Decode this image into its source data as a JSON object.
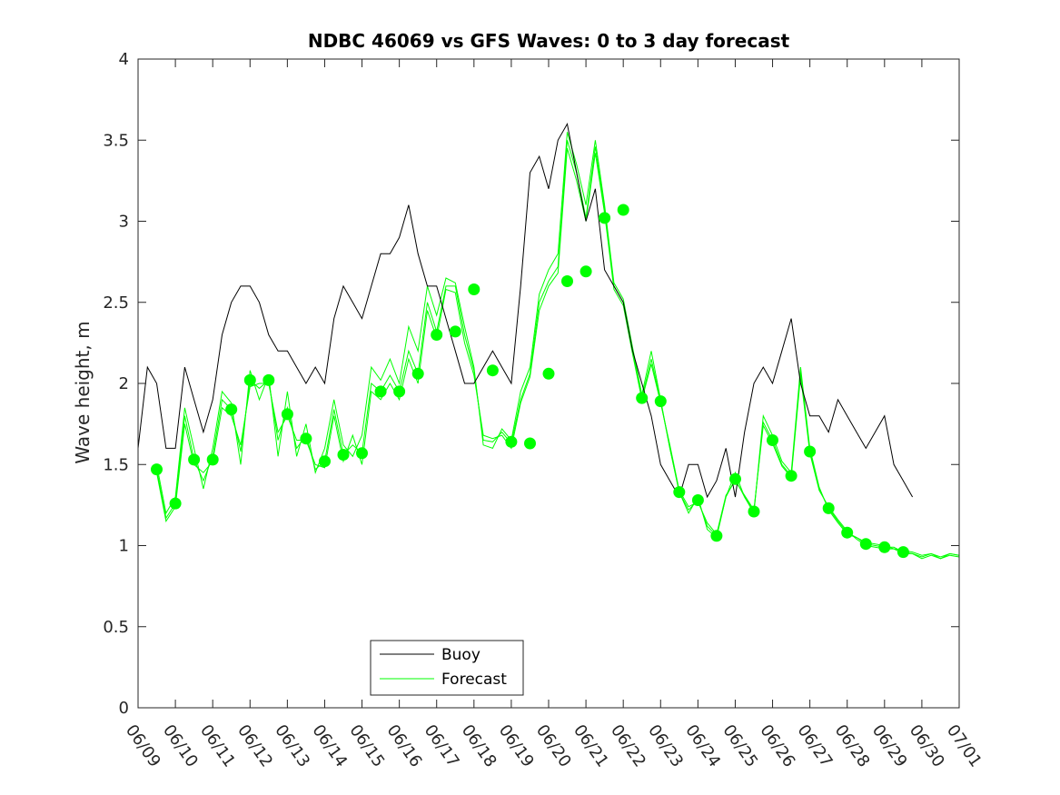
{
  "chart_data": {
    "type": "line",
    "title": "NDBC 46069 vs GFS Waves: 0 to 3 day forecast",
    "xlabel": "",
    "ylabel": "Wave height, m",
    "x_tick_labels": [
      "06/09",
      "06/10",
      "06/11",
      "06/12",
      "06/13",
      "06/14",
      "06/15",
      "06/16",
      "06/17",
      "06/18",
      "06/19",
      "06/20",
      "06/21",
      "06/22",
      "06/23",
      "06/24",
      "06/25",
      "06/26",
      "06/27",
      "06/28",
      "06/29",
      "06/30",
      "07/01"
    ],
    "xlim_days": [
      0,
      22
    ],
    "ylim": [
      0,
      4
    ],
    "y_ticks": [
      0,
      0.5,
      1,
      1.5,
      2,
      2.5,
      3,
      3.5,
      4
    ],
    "grid": false,
    "legend": {
      "location": "bottom-center",
      "entries": [
        "Buoy",
        "Forecast"
      ]
    },
    "colors": {
      "buoy": "#000000",
      "forecast": "#00ff00",
      "frame": "#262626"
    },
    "series": [
      {
        "name": "Buoy",
        "x_days": [
          0,
          0.25,
          0.5,
          0.75,
          1,
          1.25,
          1.5,
          1.75,
          2,
          2.25,
          2.5,
          2.75,
          3,
          3.25,
          3.5,
          3.75,
          4,
          4.25,
          4.5,
          4.75,
          5,
          5.25,
          5.5,
          5.75,
          6,
          6.25,
          6.5,
          6.75,
          7,
          7.25,
          7.5,
          7.75,
          8,
          8.25,
          8.5,
          8.75,
          9,
          9.25,
          9.5,
          9.75,
          10,
          10.25,
          10.5,
          10.75,
          11,
          11.25,
          11.5,
          11.75,
          12,
          12.25,
          12.5,
          12.75,
          13,
          13.25,
          13.5,
          13.75,
          14,
          14.25,
          14.5,
          14.75,
          15,
          15.25,
          15.5,
          15.75,
          16,
          16.25,
          16.5,
          16.75,
          17,
          17.25,
          17.5,
          17.75,
          18,
          18.25,
          18.5,
          18.75,
          19,
          19.25,
          19.5,
          19.75,
          20,
          20.25,
          20.5,
          20.75,
          21,
          21.25,
          21.5,
          21.75,
          22
        ],
        "values": [
          1.6,
          2.1,
          2.0,
          1.6,
          1.6,
          2.1,
          1.9,
          1.7,
          1.9,
          2.3,
          2.5,
          2.6,
          2.6,
          2.5,
          2.3,
          2.2,
          2.2,
          2.1,
          2.0,
          2.1,
          2.0,
          2.4,
          2.6,
          2.5,
          2.4,
          2.6,
          2.8,
          2.8,
          2.9,
          3.1,
          2.8,
          2.6,
          2.6,
          2.4,
          2.2,
          2.0,
          2.0,
          2.1,
          2.2,
          2.1,
          2.0,
          2.6,
          3.3,
          3.4,
          3.2,
          3.5,
          3.6,
          3.3,
          3.0,
          3.2,
          2.7,
          2.6,
          2.5,
          2.2,
          2.0,
          1.8,
          1.5,
          1.4,
          1.3,
          1.5,
          1.5,
          1.3,
          1.4,
          1.6,
          1.3,
          1.7,
          2.0,
          2.1,
          2.0,
          2.2,
          2.4,
          2.0,
          1.8,
          1.8,
          1.7,
          1.9,
          1.8,
          1.7,
          1.6,
          1.7,
          1.8,
          1.5,
          1.4,
          1.3,
          null,
          null,
          null,
          null,
          null
        ]
      },
      {
        "name": "Forecast",
        "runs": [
          {
            "x_days": [
              0.5,
              0.75,
              1,
              1.25,
              1.5,
              1.75,
              2,
              2.25,
              2.5,
              2.75,
              3,
              3.25,
              3.5,
              3.75,
              4,
              4.25,
              4.5,
              4.75,
              5,
              5.25,
              5.5,
              5.75,
              6,
              6.25,
              6.5,
              6.75,
              7,
              7.25,
              7.5,
              7.75,
              8,
              8.25,
              8.5,
              8.75,
              9,
              9.25,
              9.5,
              9.75,
              10,
              10.25,
              10.5,
              10.75,
              11,
              11.25,
              11.5,
              11.75,
              12,
              12.25,
              12.5,
              12.75,
              13,
              13.25,
              13.5,
              13.75,
              14,
              14.25,
              14.5,
              14.75,
              15,
              15.25,
              15.5,
              15.75,
              16,
              16.25,
              16.5,
              16.75,
              17,
              17.25,
              17.5,
              17.75,
              18,
              18.25,
              18.5,
              18.75,
              19,
              19.25,
              19.5,
              19.75,
              20,
              20.25,
              20.5,
              20.75,
              21,
              21.25,
              21.5,
              21.75,
              22
            ],
            "values": [
              1.47,
              1.17,
              1.26,
              1.8,
              1.53,
              1.4,
              1.55,
              1.9,
              1.84,
              1.58,
              2.02,
              1.97,
              2.02,
              1.65,
              1.85,
              1.6,
              1.68,
              1.47,
              1.52,
              1.84,
              1.56,
              1.62,
              1.57,
              2.0,
              1.95,
              2.05,
              1.95,
              2.2,
              2.06,
              2.5,
              2.32,
              2.6,
              2.6,
              2.3,
              2.08,
              1.65,
              1.64,
              1.7,
              1.63,
              1.9,
              2.06,
              2.5,
              2.63,
              2.72,
              3.5,
              3.3,
              3.02,
              3.46,
              3.07,
              2.6,
              2.5,
              2.2,
              1.91,
              2.15,
              1.89,
              1.6,
              1.33,
              1.22,
              1.28,
              1.12,
              1.06,
              1.3,
              1.41,
              1.3,
              1.21,
              1.76,
              1.65,
              1.5,
              1.43,
              2.08,
              1.58,
              1.35,
              1.23,
              1.15,
              1.08,
              1.05,
              1.01,
              1.0,
              0.99,
              0.99,
              0.96,
              0.95,
              0.93,
              0.95,
              0.92,
              0.95,
              0.94
            ]
          },
          {
            "x_days": [
              0.5,
              0.75,
              1,
              1.25,
              1.5,
              1.75,
              2,
              2.25,
              2.5,
              2.75,
              3,
              3.25,
              3.5,
              3.75,
              4,
              4.25,
              4.5,
              4.75,
              5,
              5.25,
              5.5,
              5.75,
              6,
              6.25,
              6.5,
              6.75,
              7,
              7.25,
              7.5,
              7.75,
              8,
              8.25,
              8.5,
              8.75,
              9,
              9.25,
              9.5,
              9.75,
              10,
              10.25,
              10.5,
              10.75,
              11,
              11.25,
              11.5,
              11.75,
              12,
              12.25,
              12.5,
              12.75,
              13,
              13.25,
              13.5,
              13.75,
              14,
              14.25,
              14.5,
              14.75,
              15,
              15.25,
              15.5,
              15.75,
              16,
              16.25,
              16.5,
              16.75,
              17,
              17.25,
              17.5,
              17.75,
              18,
              18.25,
              18.5,
              18.75,
              19,
              19.25,
              19.5,
              19.75,
              20,
              20.25,
              20.5,
              20.75,
              21,
              21.25,
              21.5,
              21.75,
              22
            ],
            "values": [
              1.5,
              1.2,
              1.3,
              1.85,
              1.6,
              1.35,
              1.6,
              1.95,
              1.88,
              1.5,
              2.08,
              1.9,
              2.05,
              1.55,
              1.95,
              1.55,
              1.75,
              1.45,
              1.6,
              1.9,
              1.62,
              1.55,
              1.68,
              2.1,
              2.02,
              2.15,
              2.0,
              2.35,
              2.2,
              2.6,
              2.42,
              2.65,
              2.62,
              2.35,
              2.1,
              1.62,
              1.6,
              1.72,
              1.65,
              1.95,
              2.1,
              2.55,
              2.7,
              2.8,
              3.55,
              3.35,
              3.1,
              3.5,
              3.1,
              2.62,
              2.52,
              2.22,
              1.93,
              2.2,
              1.9,
              1.6,
              1.33,
              1.2,
              1.3,
              1.1,
              1.05,
              1.3,
              1.45,
              1.3,
              1.2,
              1.8,
              1.68,
              1.52,
              1.45,
              2.1,
              1.6,
              1.36,
              1.22,
              1.14,
              1.07,
              1.05,
              1.02,
              1.01,
              1.0,
              0.98,
              0.97,
              0.96,
              0.94,
              0.95,
              0.93,
              0.95,
              0.94
            ]
          },
          {
            "x_days": [
              0.5,
              0.75,
              1,
              1.25,
              1.5,
              1.75,
              2,
              2.25,
              2.5,
              2.75,
              3,
              3.25,
              3.5,
              3.75,
              4,
              4.25,
              4.5,
              4.75,
              5,
              5.25,
              5.5,
              5.75,
              6,
              6.25,
              6.5,
              6.75,
              7,
              7.25,
              7.5,
              7.75,
              8,
              8.25,
              8.5,
              8.75,
              9,
              9.25,
              9.5,
              9.75,
              10,
              10.25,
              10.5,
              10.75,
              11,
              11.25,
              11.5,
              11.75,
              12,
              12.25,
              12.5,
              12.75,
              13,
              13.25,
              13.5,
              13.75,
              14,
              14.25,
              14.5,
              14.75,
              15,
              15.25,
              15.5,
              15.75,
              16,
              16.25,
              16.5,
              16.75,
              17,
              17.25,
              17.5,
              17.75,
              18,
              18.25,
              18.5,
              18.75,
              19,
              19.25,
              19.5,
              19.75,
              20,
              20.25,
              20.5,
              20.75,
              21,
              21.25,
              21.5,
              21.75,
              22
            ],
            "values": [
              1.45,
              1.15,
              1.24,
              1.75,
              1.5,
              1.45,
              1.52,
              1.85,
              1.8,
              1.62,
              1.98,
              2.0,
              2.0,
              1.7,
              1.8,
              1.65,
              1.65,
              1.5,
              1.48,
              1.8,
              1.52,
              1.68,
              1.5,
              1.95,
              1.9,
              2.0,
              1.9,
              2.15,
              2.0,
              2.45,
              2.28,
              2.58,
              2.56,
              2.25,
              2.05,
              1.68,
              1.66,
              1.68,
              1.6,
              1.88,
              2.04,
              2.45,
              2.6,
              2.68,
              3.45,
              3.25,
              3.0,
              3.42,
              3.05,
              2.58,
              2.48,
              2.18,
              1.9,
              2.12,
              1.88,
              1.62,
              1.34,
              1.24,
              1.27,
              1.14,
              1.07,
              1.31,
              1.4,
              1.31,
              1.22,
              1.74,
              1.63,
              1.49,
              1.42,
              2.05,
              1.57,
              1.34,
              1.24,
              1.16,
              1.09,
              1.04,
              1.0,
              0.99,
              0.98,
              0.98,
              0.95,
              0.95,
              0.92,
              0.94,
              0.92,
              0.94,
              0.93
            ]
          }
        ],
        "markers": {
          "x_days": [
            0.5,
            1,
            1.5,
            2,
            2.5,
            3,
            3.5,
            4,
            4.5,
            5,
            5.5,
            6,
            6.5,
            7,
            7.5,
            8,
            8.5,
            9,
            9.5,
            10,
            10.5,
            11,
            11.5,
            12,
            12.5,
            13,
            13.5,
            14,
            14.5,
            15,
            15.5,
            16,
            16.5,
            17,
            17.5,
            18,
            18.5,
            19,
            19.5,
            20,
            20.5,
            21
          ],
          "values": [
            1.47,
            1.26,
            1.53,
            1.53,
            1.84,
            2.02,
            2.02,
            1.81,
            1.66,
            1.52,
            1.56,
            1.57,
            1.95,
            1.95,
            2.06,
            2.3,
            2.32,
            2.58,
            2.08,
            1.64,
            1.63,
            2.06,
            2.63,
            2.69,
            3.02,
            3.07,
            1.91,
            1.89,
            1.33,
            1.28,
            1.06,
            1.41,
            1.21,
            1.65,
            1.43,
            1.58,
            1.23,
            1.08,
            1.01,
            0.99,
            0.96,
            null
          ]
        }
      }
    ]
  }
}
